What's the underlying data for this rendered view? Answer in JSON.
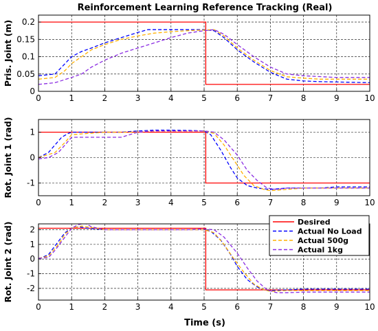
{
  "figure": {
    "title": "Reinforcement Learning Reference Tracking (Real)",
    "xlabel": "Time (s)"
  },
  "legend": {
    "entries": [
      "Desired",
      "Actual No Load",
      "Actual 500g",
      "Actual 1kg"
    ]
  },
  "colors": {
    "desired": "#ff0000",
    "no_load": "#0000ff",
    "g500": "#ffb000",
    "kg1": "#8a2be2"
  },
  "chart_data": [
    {
      "type": "line",
      "title": "Reinforcement Learning Reference Tracking (Real)",
      "xlabel": "",
      "ylabel": "Pris. Joint (m)",
      "xlim": [
        0,
        10
      ],
      "ylim": [
        0,
        0.22
      ],
      "xticks": [
        "0",
        "1",
        "2",
        "3",
        "4",
        "5",
        "6",
        "7",
        "8",
        "9",
        "10"
      ],
      "yticks": [
        0,
        0.05,
        0.1,
        0.15,
        0.2
      ],
      "ytick_labels": [
        "0",
        "0.05",
        "0.1",
        "0.15",
        "0.2"
      ],
      "grid": true,
      "series": [
        {
          "name": "Desired",
          "style": "solid",
          "x": [
            0,
            5.05,
            5.05,
            10
          ],
          "y": [
            0.2,
            0.2,
            0.02,
            0.02
          ]
        },
        {
          "name": "Actual No Load",
          "style": "dashed",
          "x": [
            0,
            0.5,
            0.8,
            1,
            1.3,
            1.6,
            2,
            2.5,
            3,
            3.3,
            4,
            4.5,
            5,
            5.3,
            5.6,
            6,
            6.5,
            7,
            7.5,
            8,
            8.5,
            9,
            10
          ],
          "y": [
            0.045,
            0.05,
            0.08,
            0.1,
            0.115,
            0.125,
            0.14,
            0.155,
            0.17,
            0.178,
            0.178,
            0.178,
            0.178,
            0.175,
            0.155,
            0.12,
            0.085,
            0.055,
            0.035,
            0.03,
            0.028,
            0.027,
            0.025
          ]
        },
        {
          "name": "Actual 500g",
          "style": "dashed",
          "x": [
            0,
            0.5,
            0.8,
            1,
            1.3,
            1.6,
            2,
            2.5,
            3,
            3.5,
            4,
            4.5,
            5,
            5.3,
            5.6,
            6,
            6.5,
            7,
            7.5,
            8,
            8.5,
            9,
            10
          ],
          "y": [
            0.035,
            0.04,
            0.06,
            0.08,
            0.1,
            0.12,
            0.135,
            0.15,
            0.16,
            0.168,
            0.172,
            0.175,
            0.177,
            0.178,
            0.16,
            0.125,
            0.09,
            0.06,
            0.042,
            0.038,
            0.035,
            0.035,
            0.035
          ]
        },
        {
          "name": "Actual 1kg",
          "style": "dashed",
          "x": [
            0,
            0.5,
            1,
            1.3,
            1.6,
            2,
            2.5,
            3,
            3.5,
            4,
            4.5,
            5,
            5.3,
            5.6,
            6,
            6.5,
            7,
            7.5,
            8,
            9,
            10
          ],
          "y": [
            0.02,
            0.025,
            0.04,
            0.05,
            0.07,
            0.09,
            0.11,
            0.125,
            0.14,
            0.155,
            0.168,
            0.175,
            0.178,
            0.165,
            0.135,
            0.1,
            0.07,
            0.05,
            0.045,
            0.04,
            0.04
          ]
        }
      ]
    },
    {
      "type": "line",
      "title": "",
      "xlabel": "",
      "ylabel": "Rot. Joint 1 (rad)",
      "xlim": [
        0,
        10
      ],
      "ylim": [
        -1.5,
        1.5
      ],
      "xticks": [
        "0",
        "1",
        "2",
        "3",
        "4",
        "5",
        "6",
        "7",
        "8",
        "9",
        "10"
      ],
      "yticks": [
        -1,
        0,
        1
      ],
      "ytick_labels": [
        "-1",
        "0",
        "1"
      ],
      "grid": true,
      "series": [
        {
          "name": "Desired",
          "style": "solid",
          "x": [
            0,
            5.05,
            5.05,
            10
          ],
          "y": [
            1.0,
            1.0,
            -1.0,
            -1.0
          ]
        },
        {
          "name": "Actual No Load",
          "style": "dashed",
          "x": [
            0,
            0.3,
            0.5,
            0.7,
            0.9,
            1,
            1.5,
            2,
            2.5,
            3,
            3.5,
            4,
            4.5,
            5,
            5.2,
            5.5,
            5.8,
            6,
            6.3,
            6.6,
            7,
            7.5,
            8,
            8.5,
            9,
            9.5,
            10
          ],
          "y": [
            0,
            0.2,
            0.5,
            0.8,
            0.95,
            1.0,
            1.0,
            1.0,
            1.0,
            1.05,
            1.08,
            1.08,
            1.07,
            1.05,
            0.9,
            0.3,
            -0.4,
            -0.8,
            -1.1,
            -1.2,
            -1.25,
            -1.2,
            -1.2,
            -1.2,
            -1.15,
            -1.15,
            -1.15
          ]
        },
        {
          "name": "Actual 500g",
          "style": "dashed",
          "x": [
            0,
            0.5,
            0.8,
            1,
            1.5,
            2,
            2.5,
            3,
            3.5,
            4,
            4.5,
            5,
            5.3,
            5.6,
            5.9,
            6.2,
            6.5,
            6.8,
            7,
            7.5,
            8,
            9,
            10
          ],
          "y": [
            0,
            0.2,
            0.6,
            0.9,
            0.95,
            1.0,
            1.0,
            1.0,
            1.05,
            1.05,
            1.05,
            1.05,
            0.95,
            0.5,
            -0.1,
            -0.7,
            -1.1,
            -1.25,
            -1.3,
            -1.25,
            -1.2,
            -1.2,
            -1.2
          ]
        },
        {
          "name": "Actual 1kg",
          "style": "dashed",
          "x": [
            0,
            0.3,
            0.6,
            0.8,
            1,
            1.5,
            2,
            2.5,
            3,
            3.5,
            4,
            4.5,
            5,
            5.3,
            5.6,
            6,
            6.3,
            6.6,
            6.9,
            7.2,
            7.5,
            8,
            9,
            10
          ],
          "y": [
            -0.05,
            0,
            0.2,
            0.5,
            0.8,
            0.8,
            0.8,
            0.8,
            1.0,
            1.05,
            1.05,
            1.05,
            1.05,
            1.0,
            0.7,
            0.1,
            -0.5,
            -0.9,
            -1.2,
            -1.25,
            -1.2,
            -1.2,
            -1.2,
            -1.2
          ]
        }
      ]
    },
    {
      "type": "line",
      "title": "",
      "xlabel": "Time (s)",
      "ylabel": "Rot. Joint 2 (rad)",
      "xlim": [
        0,
        10
      ],
      "ylim": [
        -2.8,
        2.4
      ],
      "xticks": [
        "0",
        "1",
        "2",
        "3",
        "4",
        "5",
        "6",
        "7",
        "8",
        "9",
        "10"
      ],
      "yticks": [
        -2,
        -1,
        0,
        1,
        2
      ],
      "ytick_labels": [
        "-2",
        "-1",
        "0",
        "1",
        "2"
      ],
      "grid": true,
      "series": [
        {
          "name": "Desired",
          "style": "solid",
          "x": [
            0,
            5.05,
            5.05,
            10
          ],
          "y": [
            2.1,
            2.1,
            -2.1,
            -2.1
          ]
        },
        {
          "name": "Actual No Load",
          "style": "dashed",
          "x": [
            0,
            0.3,
            0.6,
            0.8,
            1,
            1.2,
            1.5,
            2,
            2.5,
            3,
            3.5,
            4,
            4.5,
            5,
            5.2,
            5.5,
            5.8,
            6,
            6.3,
            6.6,
            6.8,
            7,
            7.5,
            8,
            9,
            10
          ],
          "y": [
            0,
            0.3,
            1.2,
            1.8,
            2.1,
            2.2,
            2.1,
            2.0,
            2.0,
            2.0,
            2.0,
            2.0,
            2.0,
            2.0,
            1.9,
            1.3,
            0.3,
            -0.5,
            -1.4,
            -1.9,
            -2.1,
            -2.15,
            -2.1,
            -2.05,
            -2.05,
            -2.05
          ]
        },
        {
          "name": "Actual 500g",
          "style": "dashed",
          "x": [
            0,
            0.3,
            0.6,
            0.8,
            1,
            1.3,
            1.6,
            2,
            2.5,
            3,
            3.5,
            4,
            4.5,
            5,
            5.3,
            5.6,
            5.9,
            6.2,
            6.5,
            6.8,
            7,
            7.5,
            8,
            9,
            10
          ],
          "y": [
            0.05,
            0.2,
            1.0,
            1.7,
            2.1,
            2.25,
            2.15,
            2.0,
            2.0,
            2.0,
            2.0,
            2.0,
            2.0,
            2.0,
            1.8,
            1.0,
            0,
            -0.9,
            -1.7,
            -2.1,
            -2.2,
            -2.15,
            -2.15,
            -2.15,
            -2.15
          ]
        },
        {
          "name": "Actual 1kg",
          "style": "dashed",
          "x": [
            0,
            0.3,
            0.5,
            0.8,
            1,
            1.2,
            1.4,
            1.6,
            2,
            2.5,
            3,
            3.5,
            4,
            4.5,
            5,
            5.3,
            5.6,
            6,
            6.3,
            6.6,
            6.9,
            7.2,
            7.5,
            8,
            9,
            10
          ],
          "y": [
            0.05,
            0.1,
            0.6,
            1.5,
            2.1,
            2.35,
            2.45,
            2.2,
            2.0,
            2.0,
            2.0,
            2.0,
            2.0,
            2.0,
            2.05,
            2.0,
            1.5,
            0.4,
            -0.6,
            -1.5,
            -2.1,
            -2.3,
            -2.3,
            -2.25,
            -2.25,
            -2.25
          ]
        }
      ]
    }
  ]
}
